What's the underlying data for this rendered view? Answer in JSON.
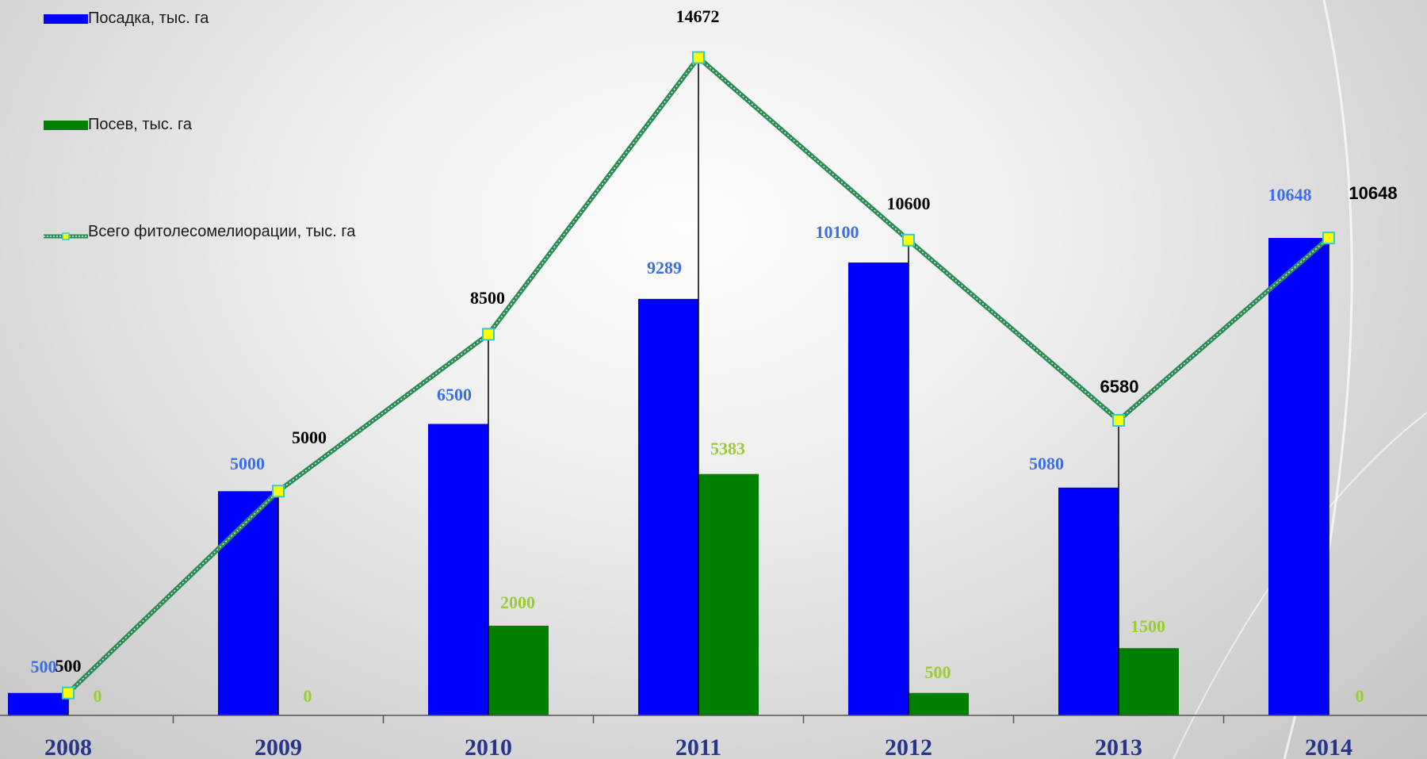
{
  "chart_data": {
    "type": "bar",
    "categories": [
      "2008",
      "2009",
      "2010",
      "2011",
      "2012",
      "2013",
      "2014"
    ],
    "series": [
      {
        "name": "Посадка, тыс. га",
        "kind": "bar",
        "color": "#0000ff",
        "label_color": "#3b6fe8",
        "values": [
          500,
          5000,
          6500,
          9289,
          10100,
          5080,
          10648
        ],
        "labels": [
          "500",
          "5000",
          "6500",
          "9289",
          "10100",
          "5080",
          "10648"
        ]
      },
      {
        "name": "Посев, тыс. га",
        "kind": "bar",
        "color": "#008000",
        "label_color": "#9acd32",
        "values": [
          0,
          0,
          2000,
          5383,
          500,
          1500,
          0
        ],
        "labels": [
          "0",
          "0",
          "2000",
          "5383",
          "500",
          "1500",
          "0"
        ]
      },
      {
        "name": "Всего фитолесомелиорации, тыс. га",
        "kind": "line",
        "color": "#2e8b57",
        "marker_color": "#ffff00",
        "marker_border": "#33cccc",
        "label_color": "#000000",
        "values": [
          500,
          5000,
          8500,
          14672,
          10600,
          6580,
          10648
        ],
        "labels": [
          "500",
          "5000",
          "8500",
          "14672",
          "10600",
          "6580",
          "10648"
        ]
      }
    ],
    "ylim": [
      0,
      15000
    ],
    "grid": false,
    "legend": "top-left",
    "xlabel": "",
    "ylabel": "",
    "title": ""
  }
}
